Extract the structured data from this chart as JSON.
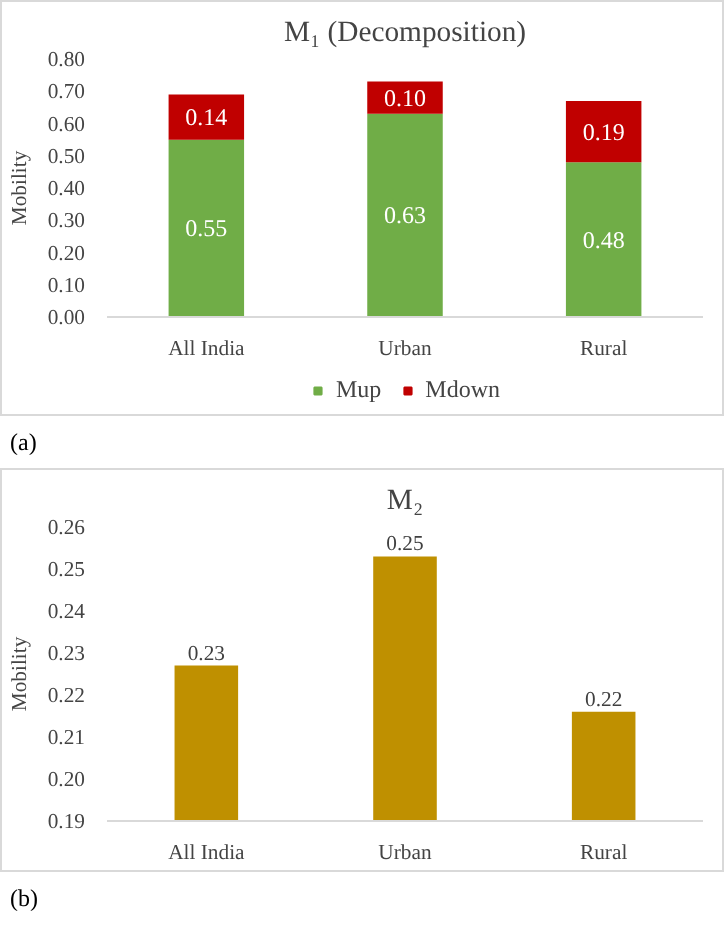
{
  "chart_data": [
    {
      "type": "bar",
      "title": "M₁ (Decomposition)",
      "ylabel": "Mobility",
      "stacked": true,
      "categories": [
        "All India",
        "Urban",
        "Rural"
      ],
      "series": [
        {
          "name": "Mup",
          "color": "#70ad47",
          "values": [
            0.55,
            0.63,
            0.48
          ],
          "value_labels": [
            "0.55",
            "0.63",
            "0.48"
          ]
        },
        {
          "name": "Mdown",
          "color": "#c00000",
          "values": [
            0.14,
            0.1,
            0.19
          ],
          "value_labels": [
            "0.14",
            "0.10",
            "0.19"
          ]
        }
      ],
      "ylim": [
        0,
        0.8
      ],
      "yticks": [
        {
          "value": 0,
          "label": "0.00"
        },
        {
          "value": 0.1,
          "label": "0.10"
        },
        {
          "value": 0.2,
          "label": "0.20"
        },
        {
          "value": 0.3,
          "label": "0.30"
        },
        {
          "value": 0.4,
          "label": "0.40"
        },
        {
          "value": 0.5,
          "label": "0.50"
        },
        {
          "value": 0.6,
          "label": "0.60"
        },
        {
          "value": 0.7,
          "label": "0.70"
        },
        {
          "value": 0.8,
          "label": "0.80"
        }
      ],
      "legend": "bottom",
      "annotations": [
        "(a)"
      ]
    },
    {
      "type": "bar",
      "title": "M₂",
      "ylabel": "Mobility",
      "categories": [
        "All India",
        "Urban",
        "Rural"
      ],
      "series": [
        {
          "color": "#bf9000",
          "values": [
            0.227,
            0.253,
            0.216
          ],
          "value_labels": [
            "0.23",
            "0.25",
            "0.22"
          ]
        }
      ],
      "ylim": [
        0.19,
        0.26
      ],
      "yticks": [
        0.19,
        {
          "value": 0.2,
          "label": "0.20"
        },
        0.21,
        0.22,
        0.23,
        0.24,
        0.25,
        0.26
      ],
      "annotations": [
        "(b)"
      ]
    }
  ]
}
